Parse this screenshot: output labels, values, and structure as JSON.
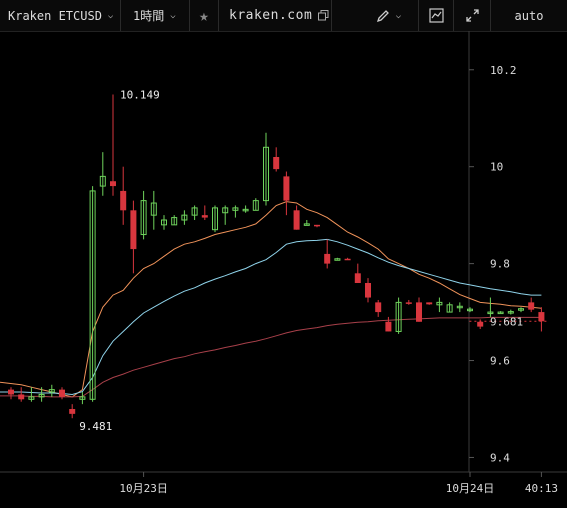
{
  "toolbar": {
    "symbol": "Kraken ETCUSD",
    "interval": "1時間",
    "star_icon": "star-icon",
    "domain": "kraken.com",
    "copy_icon": "copy-icon",
    "pencil_icon": "pencil-icon",
    "indicator_icon": "chart-indicator-icon",
    "fullscreen_icon": "expand-icon",
    "scale_mode": "auto"
  },
  "colors": {
    "background": "#000000",
    "up": "#6fd35c",
    "down": "#d9363e",
    "ma_fast": "#f0935a",
    "ma_mid": "#8fd3ea",
    "ma_slow": "#a8404a",
    "axis": "#3a3a3a"
  },
  "chart_data": {
    "type": "candlestick",
    "title": "",
    "xlabel": "",
    "ylabel": "",
    "ylim": [
      9.37,
      10.28
    ],
    "y_ticks": [
      10.2,
      10,
      9.8,
      9.6,
      9.4
    ],
    "y_tick_labels": [
      "10.2",
      "10",
      "9.8",
      "9.6",
      "9.4"
    ],
    "x_tick_labels": [
      "10月23日",
      "10月24日",
      "40:13"
    ],
    "x_tick_index": [
      13,
      45,
      52
    ],
    "last_price_label": "9.681",
    "last_price": 9.681,
    "high_annotation": {
      "label": "10.149",
      "value": 10.149,
      "index": 10
    },
    "low_annotation": {
      "label": "9.481",
      "value": 9.481,
      "index": 6
    },
    "candles": [
      [
        9.54,
        9.545,
        9.52,
        9.53
      ],
      [
        9.53,
        9.545,
        9.515,
        9.52
      ],
      [
        9.52,
        9.545,
        9.515,
        9.525
      ],
      [
        9.525,
        9.545,
        9.515,
        9.53
      ],
      [
        9.535,
        9.55,
        9.525,
        9.54
      ],
      [
        9.54,
        9.545,
        9.52,
        9.525
      ],
      [
        9.5,
        9.51,
        9.481,
        9.49
      ],
      [
        9.52,
        9.535,
        9.51,
        9.525
      ],
      [
        9.52,
        9.96,
        9.515,
        9.95
      ],
      [
        9.96,
        10.03,
        9.94,
        9.98
      ],
      [
        9.97,
        10.149,
        9.94,
        9.96
      ],
      [
        9.95,
        10.0,
        9.88,
        9.91
      ],
      [
        9.91,
        9.93,
        9.78,
        9.83
      ],
      [
        9.86,
        9.95,
        9.85,
        9.93
      ],
      [
        9.9,
        9.95,
        9.87,
        9.925
      ],
      [
        9.88,
        9.9,
        9.87,
        9.89
      ],
      [
        9.88,
        9.9,
        9.88,
        9.895
      ],
      [
        9.89,
        9.91,
        9.88,
        9.9
      ],
      [
        9.9,
        9.92,
        9.89,
        9.915
      ],
      [
        9.9,
        9.92,
        9.89,
        9.895
      ],
      [
        9.87,
        9.92,
        9.865,
        9.915
      ],
      [
        9.905,
        9.92,
        9.88,
        9.915
      ],
      [
        9.91,
        9.92,
        9.895,
        9.915
      ],
      [
        9.91,
        9.92,
        9.905,
        9.912
      ],
      [
        9.91,
        9.935,
        9.91,
        9.93
      ],
      [
        9.93,
        10.07,
        9.92,
        10.04
      ],
      [
        10.02,
        10.04,
        9.99,
        9.995
      ],
      [
        9.98,
        9.99,
        9.9,
        9.93
      ],
      [
        9.91,
        9.92,
        9.87,
        9.87
      ],
      [
        9.88,
        9.89,
        9.88,
        9.882
      ],
      [
        9.88,
        9.88,
        9.875,
        9.879
      ],
      [
        9.82,
        9.85,
        9.79,
        9.8
      ],
      [
        9.81,
        9.812,
        9.808,
        9.81
      ],
      [
        9.81,
        9.812,
        9.808,
        9.809
      ],
      [
        9.78,
        9.8,
        9.76,
        9.76
      ],
      [
        9.76,
        9.77,
        9.72,
        9.73
      ],
      [
        9.72,
        9.725,
        9.69,
        9.7
      ],
      [
        9.68,
        9.69,
        9.66,
        9.66
      ],
      [
        9.66,
        9.73,
        9.655,
        9.72
      ],
      [
        9.72,
        9.725,
        9.715,
        9.718
      ],
      [
        9.72,
        9.73,
        9.68,
        9.68
      ],
      [
        9.72,
        9.72,
        9.715,
        9.716
      ],
      [
        9.715,
        9.73,
        9.7,
        9.72
      ],
      [
        9.7,
        9.72,
        9.7,
        9.715
      ],
      [
        9.71,
        9.72,
        9.7,
        9.712
      ],
      [
        9.705,
        9.71,
        9.7,
        9.706
      ],
      [
        9.68,
        9.685,
        9.665,
        9.67
      ],
      [
        9.7,
        9.73,
        9.69,
        9.7
      ],
      [
        9.7,
        9.702,
        9.698,
        9.7
      ],
      [
        9.7,
        9.705,
        9.695,
        9.701
      ],
      [
        9.705,
        9.71,
        9.7,
        9.707
      ],
      [
        9.72,
        9.73,
        9.7,
        9.705
      ],
      [
        9.7,
        9.71,
        9.66,
        9.681
      ]
    ],
    "series": [
      {
        "values": [
          9.555,
          9.55,
          9.545,
          9.54,
          9.535,
          9.53,
          9.525,
          9.54,
          9.66,
          9.71,
          9.735,
          9.745,
          9.77,
          9.79,
          9.8,
          9.815,
          9.83,
          9.84,
          9.845,
          9.852,
          9.86,
          9.865,
          9.87,
          9.875,
          9.882,
          9.9,
          9.92,
          9.928,
          9.925,
          9.912,
          9.905,
          9.895,
          9.88,
          9.865,
          9.855,
          9.843,
          9.83,
          9.81,
          9.8,
          9.79,
          9.778,
          9.77,
          9.76,
          9.748,
          9.736,
          9.728,
          9.72,
          9.718,
          9.716,
          9.713,
          9.712,
          9.71,
          9.708
        ]
      },
      {
        "values": [
          9.535,
          9.535,
          9.534,
          9.533,
          9.533,
          9.532,
          9.53,
          9.536,
          9.565,
          9.61,
          9.64,
          9.66,
          9.68,
          9.698,
          9.71,
          9.722,
          9.733,
          9.743,
          9.75,
          9.76,
          9.768,
          9.775,
          9.783,
          9.79,
          9.8,
          9.808,
          9.823,
          9.84,
          9.845,
          9.847,
          9.848,
          9.85,
          9.845,
          9.838,
          9.83,
          9.822,
          9.812,
          9.803,
          9.796,
          9.79,
          9.784,
          9.778,
          9.772,
          9.766,
          9.76,
          9.756,
          9.752,
          9.748,
          9.745,
          9.742,
          9.738,
          9.735,
          9.735
        ]
      },
      {
        "values": [
          9.527,
          9.527,
          9.526,
          9.526,
          9.525,
          9.525,
          9.525,
          9.526,
          9.54,
          9.555,
          9.565,
          9.572,
          9.58,
          9.586,
          9.592,
          9.598,
          9.604,
          9.608,
          9.614,
          9.618,
          9.622,
          9.627,
          9.631,
          9.636,
          9.64,
          9.645,
          9.651,
          9.657,
          9.662,
          9.665,
          9.668,
          9.672,
          9.675,
          9.677,
          9.679,
          9.68,
          9.682,
          9.683,
          9.684,
          9.685,
          9.686,
          9.687,
          9.688,
          9.688,
          9.688,
          9.688,
          9.688,
          9.689,
          9.689,
          9.689,
          9.689,
          9.689,
          9.689
        ]
      }
    ]
  }
}
